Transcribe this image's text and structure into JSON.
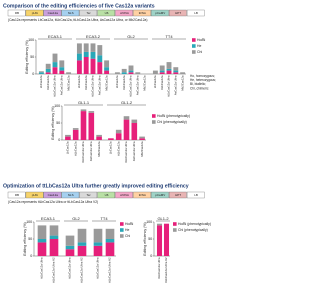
{
  "sections": [
    {
      "title": "Comparison of the editing efficiencies of five Cas12a variants",
      "construct": {
        "parts": [
          "RB",
          "pUbi",
          "Cas12a",
          "NLS",
          "Ter",
          "U6",
          "crRNA",
          "tRNA",
          "pCaMV",
          "HPT",
          "LB"
        ],
        "note": "(Cas12a represents LbCas12a, ttLbCas12a, ttLbCas12a Ultra, AsCas12a Ultra, or Mb2Cas12a)"
      }
    },
    {
      "title": "Optimization of ttLbCas12a Ultra further greatly improved editing efficiency",
      "construct": {
        "parts": [
          "RB",
          "pUbi",
          "Cas12a",
          "NLS",
          "Ter",
          "U6",
          "crRNA",
          "tRNA",
          "pCaMV",
          "HPT",
          "LB"
        ],
        "note": "(Cas12a represents ttLbCas12a Ultra or ttLbCas12a Ultra V2)"
      }
    }
  ],
  "chart_data": [
    {
      "type": "bar",
      "stacked": true,
      "y_label": "Editing efficiency (%)",
      "ylim": [
        0,
        100
      ],
      "yticks": [
        0,
        50,
        100
      ],
      "groups": [
        "ECA3-1",
        "ECA3-2",
        "GL2",
        "TT4"
      ],
      "categories": [
        "LbCas12a",
        "ttLbCas12a",
        "ttLbCas12a Ultra",
        "AsCas12a Ultra",
        "Mb2Cas12a"
      ],
      "series": [
        {
          "name": "Ho/Bi",
          "color": "#e6207a",
          "values": [
            [
              0,
              5,
              20,
              10,
              0
            ],
            [
              40,
              50,
              45,
              35,
              10
            ],
            [
              0,
              0,
              5,
              0,
              0
            ],
            [
              0,
              5,
              10,
              5,
              0
            ]
          ]
        },
        {
          "name": "He",
          "color": "#2aa8b8",
          "values": [
            [
              5,
              10,
              15,
              10,
              0
            ],
            [
              20,
              15,
              20,
              20,
              10
            ],
            [
              0,
              5,
              5,
              0,
              0
            ],
            [
              0,
              5,
              5,
              5,
              0
            ]
          ]
        },
        {
          "name": "Chi",
          "color": "#9a9a9a",
          "values": [
            [
              3,
              15,
              25,
              20,
              5
            ],
            [
              30,
              25,
              25,
              30,
              20
            ],
            [
              5,
              10,
              15,
              5,
              0
            ],
            [
              10,
              15,
              20,
              10,
              5
            ]
          ]
        }
      ],
      "annotation": [
        "Ho, homozygous;",
        "He, heterozygous;",
        "Bi, biallelic;",
        "Chi, chimeric"
      ]
    },
    {
      "type": "bar",
      "stacked": true,
      "y_label": "Editing efficiency (%)",
      "ylim": [
        0,
        100
      ],
      "yticks": [
        0,
        50,
        100
      ],
      "groups": [
        "GL1-1",
        "GL1-2"
      ],
      "categories": [
        "LbCas12a",
        "ttLbCas12a",
        "ttLbCas12a Ultra",
        "AsCas12a Ultra",
        "Mb2Cas12a"
      ],
      "series": [
        {
          "name": "Ho/Bi (phenotypically)",
          "color": "#e6207a",
          "values": [
            [
              10,
              30,
              85,
              80,
              10
            ],
            [
              5,
              20,
              60,
              50,
              5
            ]
          ]
        },
        {
          "name": "Chi (phenotypically)",
          "color": "#9a9a9a",
          "values": [
            [
              5,
              5,
              5,
              5,
              5
            ],
            [
              0,
              10,
              10,
              10,
              5
            ]
          ]
        }
      ]
    },
    {
      "type": "bar",
      "stacked": true,
      "y_label": "Editing efficiency (%)",
      "ylim": [
        0,
        100
      ],
      "yticks": [
        0,
        50,
        100
      ],
      "groups": [
        "ECA3-1",
        "GL2",
        "TT4"
      ],
      "categories": [
        "ttLbCas12a Ultra",
        "ttLbCas12a Ultra V2"
      ],
      "series": [
        {
          "name": "Ho/Bi",
          "color": "#e6207a",
          "values": [
            [
              40,
              50
            ],
            [
              20,
              30
            ],
            [
              30,
              40
            ]
          ]
        },
        {
          "name": "He",
          "color": "#2aa8b8",
          "values": [
            [
              10,
              10
            ],
            [
              10,
              10
            ],
            [
              10,
              10
            ]
          ]
        },
        {
          "name": "Chi",
          "color": "#9a9a9a",
          "values": [
            [
              40,
              30
            ],
            [
              30,
              40
            ],
            [
              40,
              30
            ]
          ]
        }
      ]
    },
    {
      "type": "bar",
      "stacked": true,
      "y_label": "Editing efficiency (%)",
      "ylim": [
        0,
        100
      ],
      "yticks": [
        0,
        50,
        100
      ],
      "groups": [
        "GL1-2"
      ],
      "categories": [
        "ttLbCas12a Ultra",
        "ttLbCas12a Ultra V2"
      ],
      "series": [
        {
          "name": "Ho/Bi (phenotypically)",
          "color": "#e6207a",
          "values": [
            [
              90,
              95
            ]
          ]
        },
        {
          "name": "Chi (phenotypically)",
          "color": "#9a9a9a",
          "values": [
            [
              5,
              0
            ]
          ]
        }
      ]
    }
  ]
}
